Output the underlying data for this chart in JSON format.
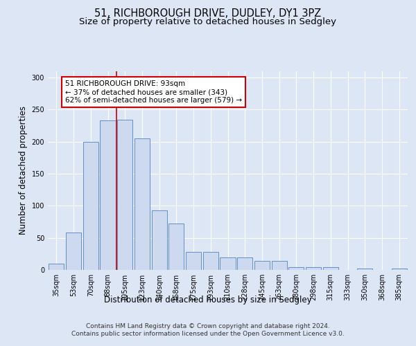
{
  "title": "51, RICHBOROUGH DRIVE, DUDLEY, DY1 3PZ",
  "subtitle": "Size of property relative to detached houses in Sedgley",
  "xlabel": "Distribution of detached houses by size in Sedgley",
  "ylabel": "Number of detached properties",
  "bar_labels": [
    "35sqm",
    "53sqm",
    "70sqm",
    "88sqm",
    "105sqm",
    "123sqm",
    "140sqm",
    "158sqm",
    "175sqm",
    "193sqm",
    "210sqm",
    "228sqm",
    "245sqm",
    "263sqm",
    "280sqm",
    "298sqm",
    "315sqm",
    "333sqm",
    "350sqm",
    "368sqm",
    "385sqm"
  ],
  "bar_values": [
    10,
    58,
    200,
    233,
    234,
    205,
    93,
    72,
    28,
    28,
    19,
    19,
    14,
    14,
    4,
    4,
    4,
    0,
    2,
    0,
    2
  ],
  "bar_color": "#ccd9ef",
  "bar_edge_color": "#6090c8",
  "red_line_x": 3.5,
  "annotation_text": "51 RICHBOROUGH DRIVE: 93sqm\n← 37% of detached houses are smaller (343)\n62% of semi-detached houses are larger (579) →",
  "annotation_box_color": "white",
  "annotation_box_edge_color": "#cc0000",
  "red_line_color": "#cc0000",
  "ylim": [
    0,
    310
  ],
  "yticks": [
    0,
    50,
    100,
    150,
    200,
    250,
    300
  ],
  "footer_text": "Contains HM Land Registry data © Crown copyright and database right 2024.\nContains public sector information licensed under the Open Government Licence v3.0.",
  "background_color": "#dce6f5",
  "plot_bg_color": "#dce6f5",
  "grid_color": "white",
  "title_fontsize": 10.5,
  "subtitle_fontsize": 9.5,
  "axis_label_fontsize": 8.5,
  "tick_fontsize": 7,
  "annot_fontsize": 7.5,
  "footer_fontsize": 6.5
}
